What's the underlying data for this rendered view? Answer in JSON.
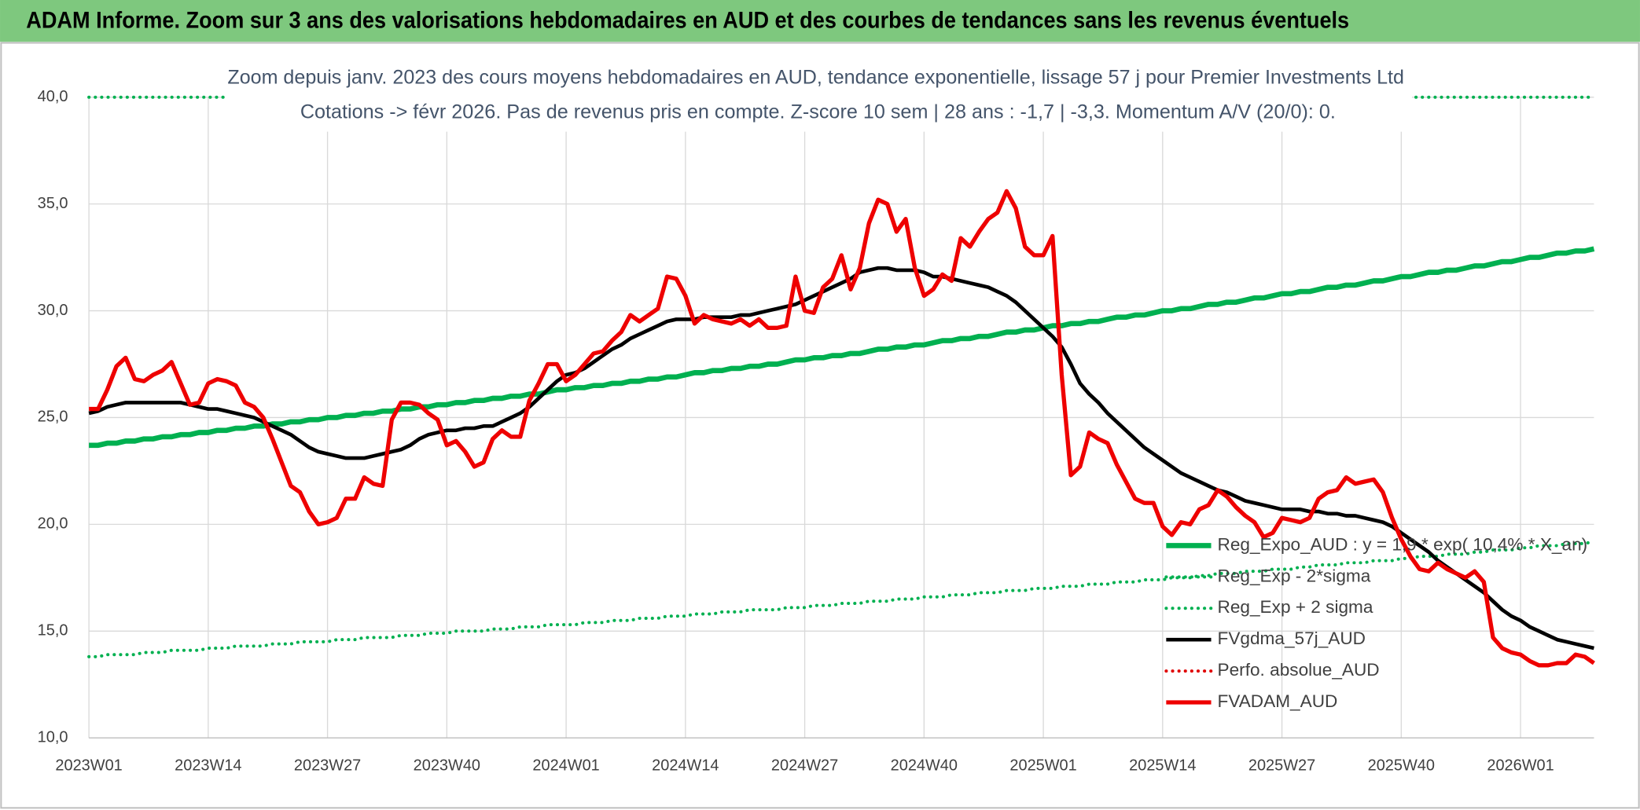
{
  "header": {
    "title": "ADAM Informe. Zoom sur 3 ans des valorisations hebdomadaires en AUD et des courbes de tendances sans les revenus éventuels"
  },
  "chart_data": {
    "type": "line",
    "title": "Zoom depuis janv. 2023 des cours moyens hebdomadaires en AUD, tendance exponentielle, lissage 57 j pour Premier Investments Ltd",
    "subtitle": "Cotations -> févr 2026. Pas de revenus pris en compte. Z-score 10 sem | 28 ans : -1,7 | -3,3. Momentum A/V (20/0): 0.",
    "categories": [
      "2023W01",
      null,
      null,
      null,
      null,
      null,
      null,
      null,
      null,
      null,
      null,
      null,
      null,
      "2023W14",
      null,
      null,
      null,
      null,
      null,
      null,
      null,
      null,
      null,
      null,
      null,
      null,
      "2023W27",
      null,
      null,
      null,
      null,
      null,
      null,
      null,
      null,
      null,
      null,
      null,
      null,
      "2023W40",
      null,
      null,
      null,
      null,
      null,
      null,
      null,
      null,
      null,
      null,
      null,
      null,
      "2024W01",
      null,
      null,
      null,
      null,
      null,
      null,
      null,
      null,
      null,
      null,
      null,
      null,
      "2024W14",
      null,
      null,
      null,
      null,
      null,
      null,
      null,
      null,
      null,
      null,
      null,
      null,
      "2024W27",
      null,
      null,
      null,
      null,
      null,
      null,
      null,
      null,
      null,
      null,
      null,
      null,
      "2024W40",
      null,
      null,
      null,
      null,
      null,
      null,
      null,
      null,
      null,
      null,
      null,
      null,
      "2025W01",
      null,
      null,
      null,
      null,
      null,
      null,
      null,
      null,
      null,
      null,
      null,
      null,
      "2025W14",
      null,
      null,
      null,
      null,
      null,
      null,
      null,
      null,
      null,
      null,
      null,
      null,
      "2025W27",
      null,
      null,
      null,
      null,
      null,
      null,
      null,
      null,
      null,
      null,
      null,
      null,
      "2025W40",
      null,
      null,
      null,
      null,
      null,
      null,
      null,
      null,
      null,
      null,
      null,
      null,
      "2026W01",
      null,
      null,
      null,
      null,
      null,
      null,
      null,
      null
    ],
    "ylim": [
      10,
      40
    ],
    "yticks": [
      {
        "value": 10,
        "label": "10,0"
      },
      {
        "value": 15,
        "label": "15,0"
      },
      {
        "value": 20,
        "label": "20,0"
      },
      {
        "value": 25,
        "label": "25,0"
      },
      {
        "value": 30,
        "label": "30,0"
      },
      {
        "value": 35,
        "label": "35,0"
      },
      {
        "value": 40,
        "label": "40,0"
      }
    ],
    "grid": true,
    "legend": "lower right",
    "series": [
      {
        "name": "Reg_Expo_AUD : y = 1,9 * exp( 10,4% * X_an)",
        "color": "#00b050",
        "style": "solid",
        "width": 5,
        "values": [
          23.7,
          23.7,
          23.8,
          23.8,
          23.9,
          23.9,
          24.0,
          24.0,
          24.1,
          24.1,
          24.2,
          24.2,
          24.3,
          24.3,
          24.4,
          24.4,
          24.5,
          24.5,
          24.6,
          24.6,
          24.7,
          24.7,
          24.8,
          24.8,
          24.9,
          24.9,
          25.0,
          25.0,
          25.1,
          25.1,
          25.2,
          25.2,
          25.3,
          25.3,
          25.4,
          25.4,
          25.5,
          25.5,
          25.6,
          25.6,
          25.7,
          25.7,
          25.8,
          25.8,
          25.9,
          25.9,
          26.0,
          26.0,
          26.1,
          26.1,
          26.2,
          26.3,
          26.3,
          26.4,
          26.4,
          26.5,
          26.5,
          26.6,
          26.6,
          26.7,
          26.7,
          26.8,
          26.8,
          26.9,
          26.9,
          27.0,
          27.1,
          27.1,
          27.2,
          27.2,
          27.3,
          27.3,
          27.4,
          27.4,
          27.5,
          27.5,
          27.6,
          27.7,
          27.7,
          27.8,
          27.8,
          27.9,
          27.9,
          28.0,
          28.0,
          28.1,
          28.2,
          28.2,
          28.3,
          28.3,
          28.4,
          28.4,
          28.5,
          28.6,
          28.6,
          28.7,
          28.7,
          28.8,
          28.8,
          28.9,
          29.0,
          29.0,
          29.1,
          29.1,
          29.2,
          29.3,
          29.3,
          29.4,
          29.4,
          29.5,
          29.5,
          29.6,
          29.7,
          29.7,
          29.8,
          29.8,
          29.9,
          30.0,
          30.0,
          30.1,
          30.1,
          30.2,
          30.3,
          30.3,
          30.4,
          30.4,
          30.5,
          30.6,
          30.6,
          30.7,
          30.8,
          30.8,
          30.9,
          30.9,
          31.0,
          31.1,
          31.1,
          31.2,
          31.2,
          31.3,
          31.4,
          31.4,
          31.5,
          31.6,
          31.6,
          31.7,
          31.8,
          31.8,
          31.9,
          31.9,
          32.0,
          32.1,
          32.1,
          32.2,
          32.3,
          32.3,
          32.4,
          32.5,
          32.5,
          32.6,
          32.7,
          32.7,
          32.8,
          32.8,
          32.9
        ]
      },
      {
        "name": "Reg_Exp - 2*sigma",
        "color": "#00b050",
        "style": "dot",
        "width": 3,
        "values": [
          13.8,
          13.8,
          13.9,
          13.9,
          13.9,
          13.9,
          14.0,
          14.0,
          14.0,
          14.1,
          14.1,
          14.1,
          14.1,
          14.2,
          14.2,
          14.2,
          14.3,
          14.3,
          14.3,
          14.3,
          14.4,
          14.4,
          14.4,
          14.5,
          14.5,
          14.5,
          14.5,
          14.6,
          14.6,
          14.6,
          14.7,
          14.7,
          14.7,
          14.7,
          14.8,
          14.8,
          14.8,
          14.9,
          14.9,
          14.9,
          15.0,
          15.0,
          15.0,
          15.0,
          15.1,
          15.1,
          15.1,
          15.2,
          15.2,
          15.2,
          15.3,
          15.3,
          15.3,
          15.3,
          15.4,
          15.4,
          15.4,
          15.5,
          15.5,
          15.5,
          15.6,
          15.6,
          15.6,
          15.7,
          15.7,
          15.7,
          15.8,
          15.8,
          15.8,
          15.9,
          15.9,
          15.9,
          16.0,
          16.0,
          16.0,
          16.0,
          16.1,
          16.1,
          16.1,
          16.2,
          16.2,
          16.2,
          16.3,
          16.3,
          16.3,
          16.4,
          16.4,
          16.4,
          16.5,
          16.5,
          16.5,
          16.6,
          16.6,
          16.6,
          16.7,
          16.7,
          16.7,
          16.8,
          16.8,
          16.8,
          16.9,
          16.9,
          16.9,
          17.0,
          17.0,
          17.0,
          17.1,
          17.1,
          17.1,
          17.2,
          17.2,
          17.2,
          17.3,
          17.3,
          17.3,
          17.4,
          17.4,
          17.4,
          17.5,
          17.5,
          17.5,
          17.6,
          17.6,
          17.7,
          17.7,
          17.7,
          17.8,
          17.8,
          17.8,
          17.9,
          17.9,
          17.9,
          18.0,
          18.0,
          18.1,
          18.1,
          18.1,
          18.2,
          18.2,
          18.2,
          18.3,
          18.3,
          18.3,
          18.4,
          18.4,
          18.5,
          18.5,
          18.5,
          18.6,
          18.6,
          18.6,
          18.7,
          18.7,
          18.8,
          18.8,
          18.8,
          18.9,
          18.9,
          19.0,
          19.0,
          19.0,
          19.1,
          19.1,
          19.1,
          19.2
        ]
      },
      {
        "name": "Reg_Exp + 2 sigma",
        "color": "#00b050",
        "style": "dot",
        "width": 3,
        "values": [
          40,
          40,
          40,
          40,
          40,
          40,
          40,
          40,
          40,
          40,
          40,
          40,
          40,
          40,
          40,
          40,
          40,
          40,
          40,
          40,
          40,
          40,
          40,
          40,
          40,
          40,
          40,
          40,
          40,
          40,
          40,
          40,
          40,
          40,
          40,
          40,
          40,
          40,
          40,
          40,
          40,
          40,
          40,
          40,
          40,
          40,
          40,
          40,
          40,
          40,
          40,
          40,
          40,
          40,
          40,
          40,
          40,
          40,
          40,
          40,
          40,
          40,
          40,
          40,
          40,
          40,
          40,
          40,
          40,
          40,
          40,
          40,
          40,
          40,
          40,
          40,
          40,
          40,
          40,
          40,
          40,
          40,
          40,
          40,
          40,
          40,
          40,
          40,
          40,
          40,
          40,
          40,
          40,
          40,
          40,
          40,
          40,
          40,
          40,
          40,
          40,
          40,
          40,
          40,
          40,
          40,
          40,
          40,
          40,
          40,
          40,
          40,
          40,
          40,
          40,
          40,
          40,
          40,
          40,
          40,
          40,
          40,
          40,
          40,
          40,
          40,
          40,
          40,
          40,
          40,
          40,
          40,
          40,
          40,
          40,
          40,
          40,
          40,
          40,
          40,
          40,
          40,
          40,
          40,
          40,
          40,
          40,
          40,
          40,
          40,
          40,
          40,
          40,
          40,
          40,
          40,
          40,
          40,
          40,
          40,
          40,
          40,
          40,
          40,
          40
        ]
      },
      {
        "name": "FVgdma_57j_AUD",
        "color": "#000000",
        "style": "solid",
        "width": 3.5,
        "values": [
          25.2,
          25.3,
          25.5,
          25.6,
          25.7,
          25.7,
          25.7,
          25.7,
          25.7,
          25.7,
          25.7,
          25.6,
          25.5,
          25.4,
          25.4,
          25.3,
          25.2,
          25.1,
          25.0,
          24.8,
          24.6,
          24.4,
          24.2,
          23.9,
          23.6,
          23.4,
          23.3,
          23.2,
          23.1,
          23.1,
          23.1,
          23.2,
          23.3,
          23.4,
          23.5,
          23.7,
          24.0,
          24.2,
          24.3,
          24.4,
          24.4,
          24.5,
          24.5,
          24.6,
          24.6,
          24.8,
          25.0,
          25.2,
          25.5,
          25.9,
          26.3,
          26.7,
          27.0,
          27.1,
          27.3,
          27.6,
          27.9,
          28.2,
          28.4,
          28.7,
          28.9,
          29.1,
          29.3,
          29.5,
          29.6,
          29.6,
          29.6,
          29.7,
          29.7,
          29.7,
          29.7,
          29.8,
          29.8,
          29.9,
          30.0,
          30.1,
          30.2,
          30.3,
          30.5,
          30.7,
          30.9,
          31.1,
          31.3,
          31.5,
          31.8,
          31.9,
          32.0,
          32.0,
          31.9,
          31.9,
          31.9,
          31.8,
          31.6,
          31.6,
          31.5,
          31.4,
          31.3,
          31.2,
          31.1,
          30.9,
          30.7,
          30.4,
          30.0,
          29.6,
          29.2,
          28.8,
          28.3,
          27.5,
          26.6,
          26.1,
          25.7,
          25.2,
          24.8,
          24.4,
          24.0,
          23.6,
          23.3,
          23.0,
          22.7,
          22.4,
          22.2,
          22.0,
          21.8,
          21.6,
          21.5,
          21.3,
          21.1,
          21.0,
          20.9,
          20.8,
          20.7,
          20.7,
          20.7,
          20.6,
          20.6,
          20.5,
          20.5,
          20.4,
          20.4,
          20.3,
          20.2,
          20.1,
          19.9,
          19.6,
          19.3,
          19.0,
          18.7,
          18.3,
          18.0,
          17.7,
          17.4,
          17.1,
          16.8,
          16.4,
          16.0,
          15.7,
          15.5,
          15.2,
          15.0,
          14.8,
          14.6,
          14.5,
          14.4,
          14.3,
          14.2
        ]
      },
      {
        "name": "Perfo. absolue_AUD",
        "color": "#e00000",
        "style": "dot",
        "width": 3
      },
      {
        "name": "FVADAM_AUD",
        "color": "#ee0000",
        "style": "solid",
        "width": 4,
        "values": [
          25.4,
          25.4,
          26.3,
          27.4,
          27.8,
          26.8,
          26.7,
          27.0,
          27.2,
          27.6,
          26.6,
          25.6,
          25.7,
          26.6,
          26.8,
          26.7,
          26.5,
          25.7,
          25.5,
          25.0,
          24.0,
          22.9,
          21.8,
          21.5,
          20.6,
          20.0,
          20.1,
          20.3,
          21.2,
          21.2,
          22.2,
          21.9,
          21.8,
          24.9,
          25.7,
          25.7,
          25.6,
          25.2,
          24.9,
          23.7,
          23.9,
          23.4,
          22.7,
          22.9,
          24.0,
          24.4,
          24.1,
          24.1,
          25.8,
          26.6,
          27.5,
          27.5,
          26.7,
          27.0,
          27.5,
          28.0,
          28.1,
          28.6,
          29.0,
          29.8,
          29.5,
          29.8,
          30.1,
          31.6,
          31.5,
          30.7,
          29.4,
          29.8,
          29.6,
          29.5,
          29.4,
          29.6,
          29.3,
          29.6,
          29.2,
          29.2,
          29.3,
          31.6,
          30.0,
          29.9,
          31.1,
          31.5,
          32.6,
          31.0,
          32.0,
          34.1,
          35.2,
          35.0,
          33.7,
          34.3,
          32.0,
          30.7,
          31.0,
          31.7,
          31.4,
          33.4,
          33.0,
          33.7,
          34.3,
          34.6,
          35.6,
          34.8,
          33.0,
          32.6,
          32.6,
          33.5,
          27.0,
          22.3,
          22.7,
          24.3,
          24.0,
          23.8,
          22.8,
          22.0,
          21.2,
          21.0,
          21.0,
          19.9,
          19.5,
          20.1,
          20.0,
          20.7,
          20.9,
          21.6,
          21.3,
          20.8,
          20.4,
          20.1,
          19.4,
          19.6,
          20.3,
          20.2,
          20.1,
          20.3,
          21.2,
          21.5,
          21.6,
          22.2,
          21.9,
          22.0,
          22.1,
          21.5,
          20.3,
          19.3,
          18.5,
          17.9,
          17.8,
          18.2,
          17.9,
          17.7,
          17.5,
          17.8,
          17.3,
          14.7,
          14.2,
          14.0,
          13.9,
          13.6,
          13.4,
          13.4,
          13.5,
          13.5,
          13.9,
          13.8,
          13.5
        ]
      }
    ]
  }
}
